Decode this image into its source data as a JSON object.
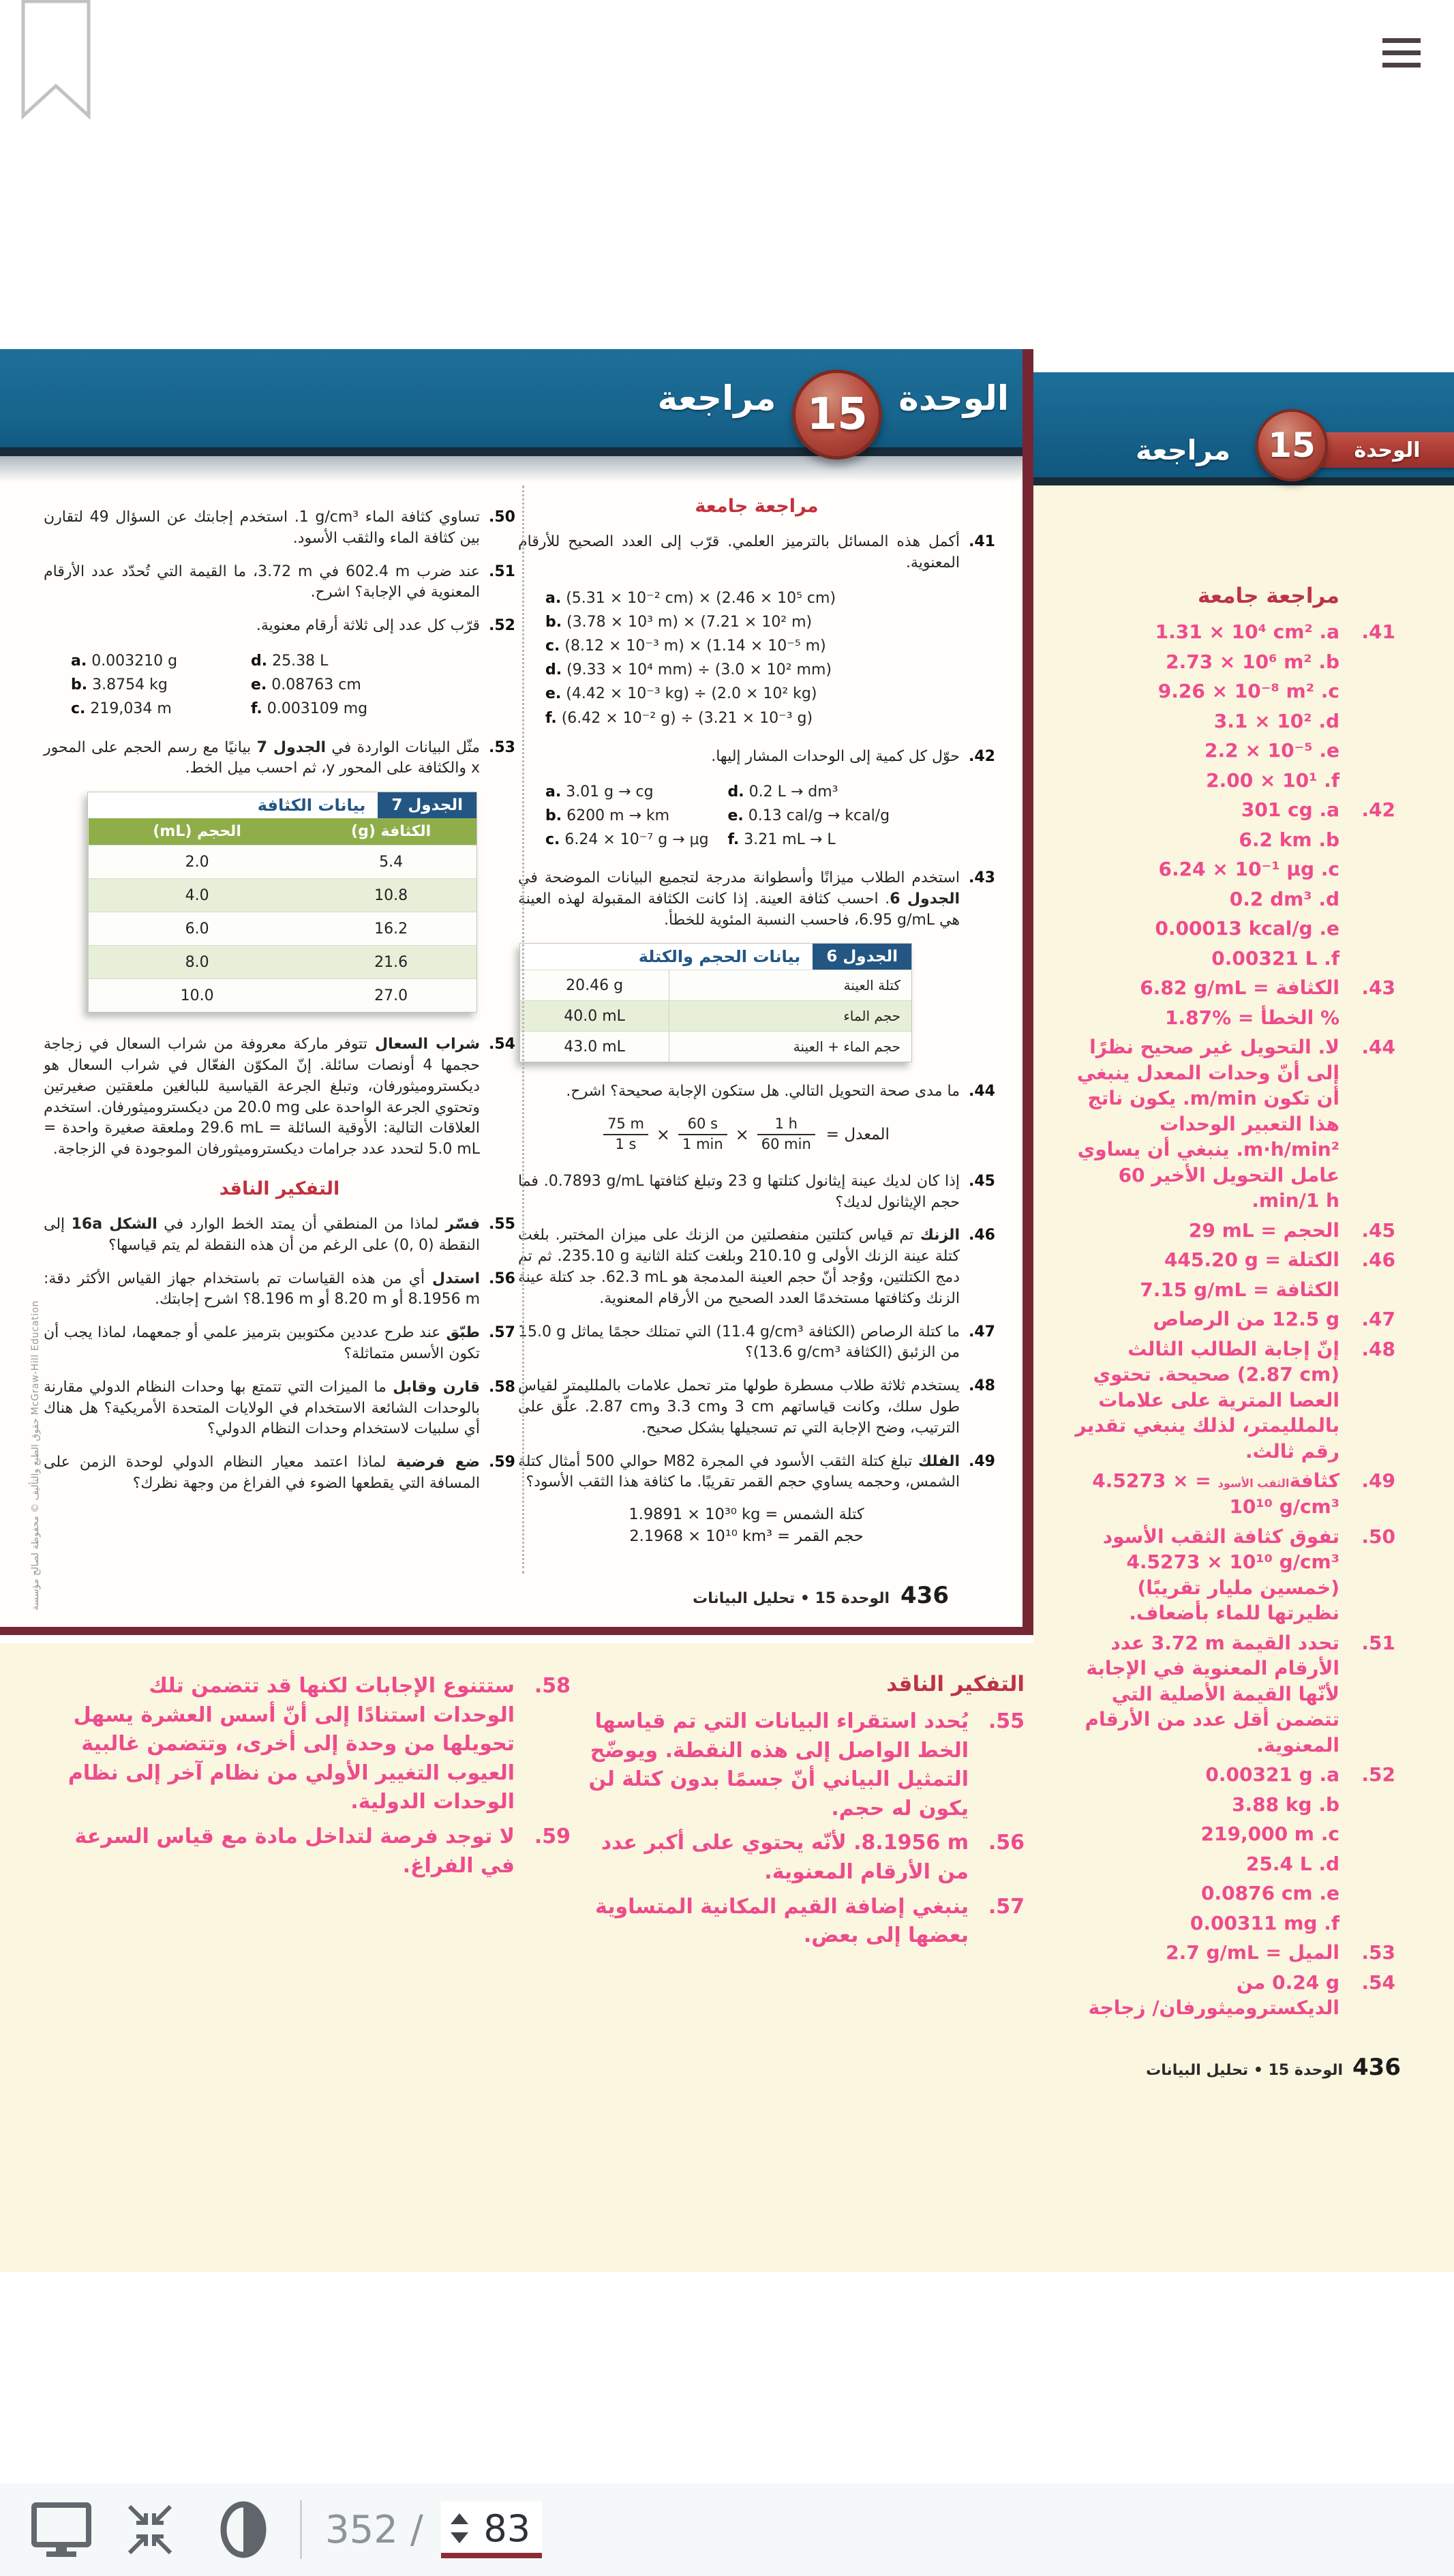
{
  "header": {
    "unit_word": "الوحدة",
    "unit_number": "15",
    "review_word": "مراجعة"
  },
  "sidebar_header": {
    "unit_word": "الوحدة",
    "unit_number": "15",
    "review_word": "مراجعة"
  },
  "footer": {
    "page_number": "436",
    "section_label": "الوحدة 15 • تحليل البيانات"
  },
  "copyright": "حقوق الطبع والتأليف © محفوظة لصالح مؤسسة McGraw-Hill Education",
  "toolbar": {
    "page_count": "352",
    "slash": "/",
    "page_value": "83"
  },
  "formula": {
    "label": "المعدل =",
    "operator": "×",
    "fractions": [
      [
        "75 m",
        "1 s"
      ],
      [
        "60 s",
        "1 min"
      ],
      [
        "1 h",
        "60 min"
      ]
    ]
  },
  "tables": {
    "t6": {
      "cls": "t6",
      "tag": "الجدول 6",
      "title": "بيانات الحجم والكتلة",
      "rows": [
        [
          "كتلة العينة",
          "20.46 g"
        ],
        [
          "حجم الماء",
          "40.0 mL"
        ],
        [
          "حجم الماء + العينة",
          "43.0 mL"
        ]
      ]
    },
    "t7": {
      "cls": "t7",
      "tag": "الجدول 7",
      "title": "بيانات الكثافة",
      "headers": [
        "الكثافة (g)",
        "الحجم (mL)"
      ],
      "rows": [
        [
          "5.4",
          "2.0"
        ],
        [
          "10.8",
          "4.0"
        ],
        [
          "16.2",
          "6.0"
        ],
        [
          "21.6",
          "8.0"
        ],
        [
          "27.0",
          "10.0"
        ]
      ]
    }
  },
  "right_column": {
    "blocks": [
      {
        "type": "heading",
        "text": "مراجعة جامعة"
      },
      {
        "type": "q",
        "num": "41.",
        "parts": [
          {
            "t": "أكمل هذه المسائل بالترميز العلمي. قرّب إلى العدد الصحيح للأرقام المعنوية."
          }
        ]
      },
      {
        "type": "list",
        "items": [
          [
            "a.",
            "(5.31 × 10⁻² cm) × (2.46 × 10⁵ cm)"
          ],
          [
            "b.",
            "(3.78 × 10³ m) × (7.21 × 10² m)"
          ],
          [
            "c.",
            "(8.12 × 10⁻³ m) × (1.14 × 10⁻⁵ m)"
          ],
          [
            "d.",
            "(9.33 × 10⁴ mm) ÷ (3.0 × 10² mm)"
          ],
          [
            "e.",
            "(4.42 × 10⁻³ kg) ÷ (2.0 × 10² kg)"
          ],
          [
            "f.",
            "(6.42 × 10⁻² g) ÷ (3.21 × 10⁻³ g)"
          ]
        ]
      },
      {
        "type": "q",
        "num": "42.",
        "parts": [
          {
            "t": "حوّل كل كمية إلى الوحدات المشار إليها."
          }
        ]
      },
      {
        "type": "pairs",
        "rows": [
          [
            [
              "a.",
              "3.01 g → cg"
            ],
            [
              "d.",
              "0.2 L → dm³"
            ]
          ],
          [
            [
              "b.",
              "6200 m → km"
            ],
            [
              "e.",
              "0.13 cal/g → kcal/g"
            ]
          ],
          [
            [
              "c.",
              "6.24 × 10⁻⁷ g → μg"
            ],
            [
              "f.",
              "3.21 mL → L"
            ]
          ]
        ]
      },
      {
        "type": "q",
        "num": "43.",
        "parts": [
          {
            "t": "استخدم الطلاب ميزانًا وأسطوانة مدرجة لتجميع البيانات الموضحة في "
          },
          {
            "b": "الجدول 6"
          },
          {
            "t": ". احسب كثافة العينة. إذا كانت الكثافة المقبولة لهذه العينة هي "
          },
          {
            "v": "6.95 g/mL"
          },
          {
            "t": "، فاحسب النسبة المئوية للخطأ."
          }
        ]
      },
      {
        "type": "table",
        "ref": "t6"
      },
      {
        "type": "q",
        "num": "44.",
        "parts": [
          {
            "t": "ما مدى صحة التحويل التالي. هل ستكون الإجابة صحيحة؟ اشرح."
          }
        ]
      },
      {
        "type": "formula"
      },
      {
        "type": "q",
        "num": "45.",
        "parts": [
          {
            "t": "إذا كان لديك عينة إيثانول كتلتها "
          },
          {
            "v": "23 g"
          },
          {
            "t": " وتبلغ كثافتها "
          },
          {
            "v": "0.7893 g/mL"
          },
          {
            "t": ". فما حجم الإيثانول لديك؟"
          }
        ]
      },
      {
        "type": "q",
        "num": "46.",
        "parts": [
          {
            "b": "الزنك "
          },
          {
            "t": "تم قياس كتلتين منفصلتين من الزنك على ميزان المختبر. بلغت كتلة عينة الزنك الأولى "
          },
          {
            "v": "210.10 g"
          },
          {
            "t": " وبلغت كتلة الثانية "
          },
          {
            "v": "235.10 g"
          },
          {
            "t": ". ثم تم دمج الكتلتين، ووُجد أنّ حجم العينة المدمجة هو "
          },
          {
            "v": "62.3 mL"
          },
          {
            "t": ". جد كتلة عينة الزنك وكثافتها مستخدمًا العدد الصحيح من الأرقام المعنوية."
          }
        ]
      },
      {
        "type": "q",
        "num": "47.",
        "parts": [
          {
            "t": "ما كتلة الرصاص (الكثافة "
          },
          {
            "v": "11.4 g/cm³"
          },
          {
            "t": ") التي تمتلك حجمًا يماثل "
          },
          {
            "v": "15.0 g"
          },
          {
            "t": " من الزئبق (الكثافة "
          },
          {
            "v": "13.6 g/cm³"
          },
          {
            "t": ")؟"
          }
        ]
      },
      {
        "type": "q",
        "num": "48.",
        "parts": [
          {
            "t": "يستخدم ثلاثة طلاب مسطرة طولها متر تحمل علامات بالملليمتر لقياس طول سلك، وكانت قياساتهم "
          },
          {
            "v": "3 cm"
          },
          {
            "t": " و"
          },
          {
            "v": "3.3 cm"
          },
          {
            "t": " و"
          },
          {
            "v": "2.87 cm"
          },
          {
            "t": ". علّق على الترتيب، وضح الإجابة التي تم تسجيلها بشكل صحيح."
          }
        ]
      },
      {
        "type": "q",
        "num": "49.",
        "parts": [
          {
            "b": "الفلك "
          },
          {
            "t": "تبلغ كتلة الثقب الأسود في المجرة "
          },
          {
            "v": "M82"
          },
          {
            "t": " حوالي 500 أمثال كتلة الشمس، وحجمه يساوي حجم القمر تقريبًا. ما كثافة هذا الثقب الأسود؟"
          }
        ]
      },
      {
        "type": "eqlines",
        "lines": [
          {
            "t": "كتلة الشمس = ",
            "v": "1.9891 × 10³⁰ kg"
          },
          {
            "t": "حجم القمر = ",
            "v": "2.1968 × 10¹⁰ km³"
          }
        ]
      }
    ]
  },
  "left_column": {
    "blocks": [
      {
        "type": "q",
        "num": "50.",
        "parts": [
          {
            "t": "تساوي كثافة الماء "
          },
          {
            "v": "1 g/cm³"
          },
          {
            "t": ". استخدم إجابتك عن السؤال 49 لتقارن بين كثافة الماء والثقب الأسود."
          }
        ]
      },
      {
        "type": "q",
        "num": "51.",
        "parts": [
          {
            "t": "عند ضرب "
          },
          {
            "v": "602.4 m"
          },
          {
            "t": " في "
          },
          {
            "v": "3.72 m"
          },
          {
            "t": "، ما القيمة التي تُحدّد عدد الأرقام المعنوية في الإجابة؟ اشرح."
          }
        ]
      },
      {
        "type": "q",
        "num": "52.",
        "parts": [
          {
            "t": "قرّب كل عدد إلى ثلاثة أرقام معنوية."
          }
        ]
      },
      {
        "type": "pairs",
        "rows": [
          [
            [
              "a.",
              "0.003210 g"
            ],
            [
              "d.",
              "25.38 L"
            ]
          ],
          [
            [
              "b.",
              "3.8754 kg"
            ],
            [
              "e.",
              "0.08763 cm"
            ]
          ],
          [
            [
              "c.",
              "219,034 m"
            ],
            [
              "f.",
              "0.003109 mg"
            ]
          ]
        ]
      },
      {
        "type": "q",
        "num": "53.",
        "parts": [
          {
            "t": "مثّل البيانات الواردة في "
          },
          {
            "b": "الجدول 7"
          },
          {
            "t": " بيانيًا مع رسم الحجم على المحور "
          },
          {
            "v": "x"
          },
          {
            "t": " والكثافة على المحور "
          },
          {
            "v": "y"
          },
          {
            "t": "، ثم احسب ميل الخط."
          }
        ]
      },
      {
        "type": "table",
        "ref": "t7"
      },
      {
        "type": "q",
        "num": "54.",
        "parts": [
          {
            "b": "شراب السعال "
          },
          {
            "t": "تتوفر ماركة معروفة من شراب السعال في زجاجة حجمها 4 أونصات سائلة. إنّ المكوّن الفعّال في شراب السعال هو ديكستروميثورفان، وتبلغ الجرعة القياسية للبالغين ملعقتين صغيرتين وتحتوي الجرعة الواحدة على "
          },
          {
            "v": "20.0 mg"
          },
          {
            "t": " من ديكستروميثورفان. استخدم العلاقات التالية: الأوقية السائلة = "
          },
          {
            "v": "29.6 mL"
          },
          {
            "t": " وملعقة صغيرة واحدة = "
          },
          {
            "v": "5.0 mL"
          },
          {
            "t": " لتحدد عدد جرامات ديكستروميثورفان الموجودة في الزجاجة."
          }
        ]
      },
      {
        "type": "heading",
        "text": "التفكير الناقد",
        "cls": "critical"
      },
      {
        "type": "q",
        "num": "55.",
        "parts": [
          {
            "b": "فسّر "
          },
          {
            "t": "لماذا من المنطقي أن يمتد الخط الوارد في "
          },
          {
            "b": "الشكل 16a"
          },
          {
            "t": " إلى النقطة "
          },
          {
            "v": "(0, 0)"
          },
          {
            "t": " على الرغم من أن هذه النقطة لم يتم قياسها؟"
          }
        ]
      },
      {
        "type": "q",
        "num": "56.",
        "parts": [
          {
            "b": "استدل "
          },
          {
            "t": "أي من هذه القياسات تم باستخدام جهاز القياس الأكثر دقة: "
          },
          {
            "v": "8.1956 m"
          },
          {
            "t": " أو "
          },
          {
            "v": "8.20 m"
          },
          {
            "t": " أو "
          },
          {
            "v": "8.196 m"
          },
          {
            "t": "؟ اشرح إجابتك."
          }
        ]
      },
      {
        "type": "q",
        "num": "57.",
        "parts": [
          {
            "b": "طبّق "
          },
          {
            "t": "عند طرح عددين مكتوبين بترميز علمي أو جمعهما، لماذا يجب أن تكون الأسس متماثلة؟"
          }
        ]
      },
      {
        "type": "q",
        "num": "58.",
        "parts": [
          {
            "b": "قارن وقابل "
          },
          {
            "t": "ما الميزات التي تتمتع بها وحدات النظام الدولي مقارنة بالوحدات الشائعة الاستخدام في الولايات المتحدة الأمريكية؟ هل هناك أي سلبيات لاستخدام وحدات النظام الدولي؟"
          }
        ]
      },
      {
        "type": "q",
        "num": "59.",
        "parts": [
          {
            "b": "ضع فرضية "
          },
          {
            "t": "لماذا اعتمد معيار النظام الدولي لوحدة الزمن على المسافة التي يقطعها الضوء في الفراغ من وجهة نظرك؟"
          }
        ]
      }
    ]
  },
  "sidebar_answers": [
    {
      "h": "مراجعة جامعة"
    },
    {
      "n": "41.",
      "parts": [
        {
          "l": "a."
        },
        {
          "v": "1.31 × 10⁴ cm²"
        }
      ]
    },
    {
      "parts": [
        {
          "l": "b."
        },
        {
          "v": "2.73 × 10⁶ m²"
        }
      ]
    },
    {
      "parts": [
        {
          "l": "c."
        },
        {
          "v": "9.26 × 10⁻⁸ m²"
        }
      ]
    },
    {
      "parts": [
        {
          "l": "d."
        },
        {
          "v": "3.1 × 10²"
        }
      ]
    },
    {
      "parts": [
        {
          "l": "e."
        },
        {
          "v": "2.2 × 10⁻⁵"
        }
      ]
    },
    {
      "parts": [
        {
          "l": "f."
        },
        {
          "v": "2.00 × 10¹"
        }
      ]
    },
    {
      "n": "42.",
      "parts": [
        {
          "l": "a."
        },
        {
          "v": "301 cg"
        }
      ]
    },
    {
      "parts": [
        {
          "l": "b."
        },
        {
          "v": "6.2 km"
        }
      ]
    },
    {
      "parts": [
        {
          "l": "c."
        },
        {
          "v": "6.24 × 10⁻¹ μg"
        }
      ]
    },
    {
      "parts": [
        {
          "l": "d."
        },
        {
          "v": "0.2 dm³"
        }
      ]
    },
    {
      "parts": [
        {
          "l": "e."
        },
        {
          "v": "0.00013 kcal/g"
        }
      ]
    },
    {
      "parts": [
        {
          "l": "f."
        },
        {
          "v": "0.00321 L"
        }
      ]
    },
    {
      "n": "43.",
      "parts": [
        {
          "t": "الكثافة = "
        },
        {
          "v": "6.82 g/mL"
        }
      ]
    },
    {
      "parts": [
        {
          "t": "% الخطأ = "
        },
        {
          "v": "1.87%"
        }
      ]
    },
    {
      "n": "44.",
      "parts": [
        {
          "t": "لا. التحويل غير صحيح نظرًا إلى أنّ وحدات المعدل ينبغي أن تكون "
        },
        {
          "v": "m/min"
        },
        {
          "t": ". يكون ناتج هذا التعبير الوحدات "
        },
        {
          "v": "m·h/min²"
        },
        {
          "t": ". ينبغي أن يساوي عامل التحويل الأخير "
        },
        {
          "v": "60 min/1 h"
        },
        {
          "t": "."
        }
      ]
    },
    {
      "n": "45.",
      "parts": [
        {
          "t": "الحجم = "
        },
        {
          "v": "29 mL"
        }
      ]
    },
    {
      "n": "46.",
      "parts": [
        {
          "t": "الكتلة = "
        },
        {
          "v": "445.20 g"
        }
      ]
    },
    {
      "parts": [
        {
          "t": "الكثافة = "
        },
        {
          "v": "7.15 g/mL"
        }
      ]
    },
    {
      "n": "47.",
      "parts": [
        {
          "v": "12.5 g"
        },
        {
          "t": " من الرصاص"
        }
      ]
    },
    {
      "n": "48.",
      "parts": [
        {
          "t": "إنّ إجابة الطالب الثالث "
        },
        {
          "v": "(2.87 cm)"
        },
        {
          "t": " صحيحة. تحتوي العصا المترية على علامات بالملليمتر، لذلك ينبغي تقدير رقم ثالث."
        }
      ]
    },
    {
      "n": "49.",
      "parts": [
        {
          "t": "كثافة"
        },
        {
          "s": "الثقب الأسود"
        },
        {
          "t": " = "
        },
        {
          "v": "4.5273 × 10¹⁰ g/cm³"
        }
      ]
    },
    {
      "n": "50.",
      "parts": [
        {
          "t": "تفوق كثافة الثقب الأسود "
        },
        {
          "v": "4.5273 × 10¹⁰ g/cm³"
        },
        {
          "t": " (خمسين مليار تقريبًا) نظيرتها للماء بأضعاف."
        }
      ]
    },
    {
      "n": "51.",
      "parts": [
        {
          "t": "تحدد القيمة "
        },
        {
          "v": "3.72 m"
        },
        {
          "t": " عدد الأرقام المعنوية في الإجابة لأنّها القيمة الأصلية التي تتضمن أقل عدد من الأرقام المعنوية."
        }
      ]
    },
    {
      "n": "52.",
      "parts": [
        {
          "l": "a."
        },
        {
          "v": "0.00321 g"
        }
      ]
    },
    {
      "parts": [
        {
          "l": "b."
        },
        {
          "v": "3.88 kg"
        }
      ]
    },
    {
      "parts": [
        {
          "l": "c."
        },
        {
          "v": "219,000 m"
        }
      ]
    },
    {
      "parts": [
        {
          "l": "d."
        },
        {
          "v": "25.4 L"
        }
      ]
    },
    {
      "parts": [
        {
          "l": "e."
        },
        {
          "v": "0.0876 cm"
        }
      ]
    },
    {
      "parts": [
        {
          "l": "f."
        },
        {
          "v": "0.00311 mg"
        }
      ]
    },
    {
      "n": "53.",
      "parts": [
        {
          "t": "الميل = "
        },
        {
          "v": "2.7 g/mL"
        }
      ]
    },
    {
      "n": "54.",
      "parts": [
        {
          "v": "0.24 g"
        },
        {
          "t": " من الديكستروميثورفان/ زجاجة"
        }
      ]
    }
  ],
  "bottom_critical": [
    {
      "h": "التفكير الناقد",
      "flush": true
    },
    {
      "n": "55.",
      "parts": [
        {
          "t": "يُحدد استقراء البيانات التي تم قياسها الخط الواصل إلى هذه النقطة. ويوضّح التمثيل البياني أنّ جسمًا بدون كتلة لن يكون له حجم."
        }
      ]
    },
    {
      "n": "56.",
      "parts": [
        {
          "v": "8.1956 m"
        },
        {
          "t": ". لأنّه يحتوي على أكبر عدد من الأرقام المعنوية."
        }
      ]
    },
    {
      "n": "57.",
      "parts": [
        {
          "t": "ينبغي إضافة القيم المكانية المتساوية بعضها إلى بعض."
        }
      ]
    }
  ],
  "bottom_misc": [
    {
      "n": "58.",
      "parts": [
        {
          "t": "ستتنوع الإجابات لكنها قد تتضمن تلك الوحدات استنادًا إلى أنّ أسس العشرة يسهل تحويلها من وحدة إلى أخرى، وتتضمن غالبية العيوب التغيير الأولي من نظام آخر إلى نظام الوحدات الدولية."
        }
      ]
    },
    {
      "n": "59.",
      "parts": [
        {
          "t": "لا توجد فرصة لتداخل مادة مع قياس السرعة في الفراغ."
        }
      ]
    }
  ]
}
